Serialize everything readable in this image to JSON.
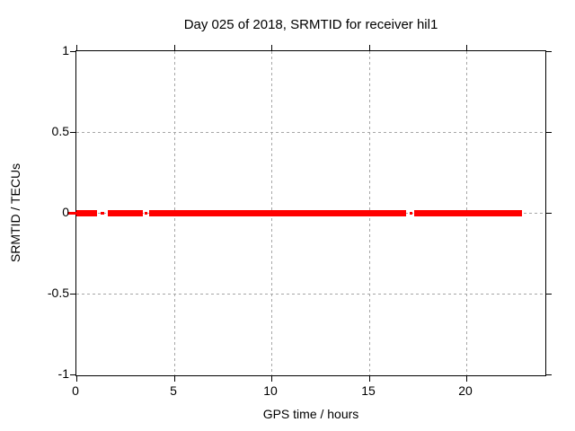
{
  "title": "Day 025 of 2018, SRMTID for receiver hil1",
  "chart_data": {
    "type": "line",
    "title": "Day 025 of 2018, SRMTID for receiver hil1",
    "xlabel": "GPS time / hours",
    "ylabel": "SRMTID / TECUs",
    "xlim": [
      0,
      24
    ],
    "ylim": [
      -1,
      1
    ],
    "xticks": [
      0,
      5,
      10,
      15,
      20
    ],
    "xtick_labels": [
      "0",
      "5",
      "10",
      "15",
      "20"
    ],
    "yticks": [
      1,
      0.5,
      0,
      -0.5,
      -1
    ],
    "ytick_labels": [
      "1",
      "0.5",
      "0",
      "-0.5",
      "-1"
    ],
    "grid": true,
    "legend": "none",
    "colors": {
      "series": "#ff0000",
      "grid": "#a6a6a6",
      "border": "#000000",
      "background": "#ffffff",
      "text": "#000000"
    },
    "series": [
      {
        "name": "SRMTID",
        "y_value": 0,
        "segments_hours": [
          [
            0.0,
            1.05
          ],
          [
            1.6,
            3.39
          ],
          [
            3.75,
            16.93
          ],
          [
            17.3,
            22.84
          ]
        ],
        "thin_segments_hours": [
          [
            -0.46,
            0.0
          ],
          [
            1.24,
            1.42
          ],
          [
            3.52,
            3.68
          ],
          [
            17.07,
            17.21
          ]
        ]
      }
    ]
  }
}
